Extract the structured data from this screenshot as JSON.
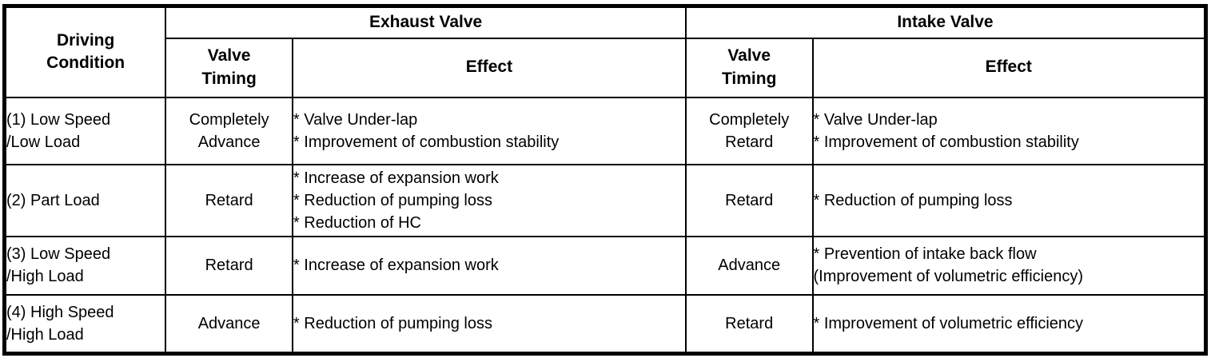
{
  "table": {
    "headers": {
      "driving_condition": "Driving\nCondition",
      "exhaust_valve": "Exhaust Valve",
      "intake_valve": "Intake Valve",
      "valve_timing": "Valve\nTiming",
      "effect": "Effect"
    },
    "rows": [
      {
        "condition": "(1) Low Speed\n/Low Load",
        "exhaust_timing": "Completely\nAdvance",
        "exhaust_effects": [
          "* Valve Under-lap",
          "* Improvement of combustion stability"
        ],
        "intake_timing": "Completely\nRetard",
        "intake_effects": [
          "* Valve Under-lap",
          "* Improvement of combustion stability"
        ]
      },
      {
        "condition": "(2) Part Load",
        "exhaust_timing": "Retard",
        "exhaust_effects": [
          "* Increase of expansion work",
          "* Reduction of pumping loss",
          "* Reduction of HC"
        ],
        "intake_timing": "Retard",
        "intake_effects": [
          "* Reduction of pumping loss"
        ]
      },
      {
        "condition": "(3) Low Speed\n/High Load",
        "exhaust_timing": "Retard",
        "exhaust_effects": [
          "* Increase of expansion work"
        ],
        "intake_timing": "Advance",
        "intake_effects": [
          "* Prevention of intake back flow",
          "(Improvement of volumetric efficiency)"
        ]
      },
      {
        "condition": "(4) High Speed\n/High Load",
        "exhaust_timing": "Advance",
        "exhaust_effects": [
          "* Reduction of pumping loss"
        ],
        "intake_timing": "Retard",
        "intake_effects": [
          "* Improvement of volumetric efficiency"
        ]
      }
    ]
  },
  "colors": {
    "border": "#000000",
    "text": "#000000",
    "background": "#ffffff"
  }
}
